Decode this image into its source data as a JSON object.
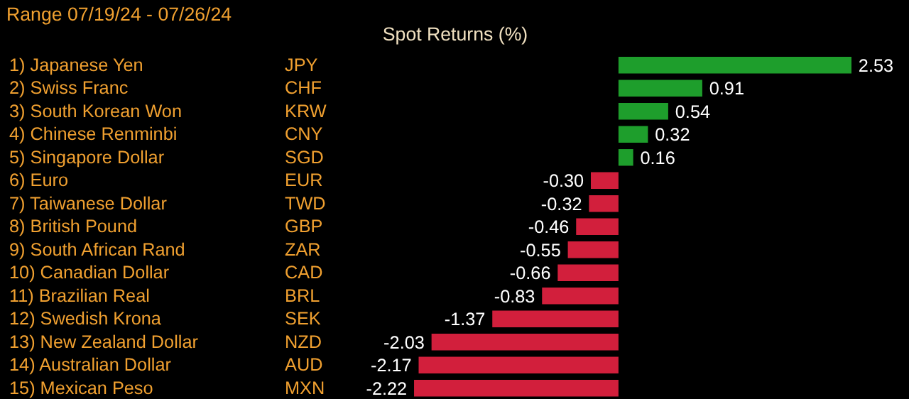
{
  "chart_data": {
    "type": "bar",
    "orientation": "horizontal",
    "title": "Spot Returns (%)",
    "subtitle": "Range 07/19/24 - 07/26/24",
    "categories": [
      "1) Japanese Yen",
      "2) Swiss Franc",
      "3) South Korean Won",
      "4) Chinese Renminbi",
      "5) Singapore Dollar",
      "6) Euro",
      "7) Taiwanese Dollar",
      "8) British Pound",
      "9) South African Rand",
      "10) Canadian Dollar",
      "11) Brazilian Real",
      "12) Swedish Krona",
      "13) New Zealand Dollar",
      "14) Australian Dollar",
      "15) Mexican Peso"
    ],
    "values": [
      2.53,
      0.91,
      0.54,
      0.32,
      0.16,
      -0.3,
      -0.32,
      -0.46,
      -0.55,
      -0.66,
      -0.83,
      -1.37,
      -2.03,
      -2.17,
      -2.22
    ],
    "value_labels": [
      "2.53",
      "0.91",
      "0.54",
      "0.32",
      "0.16",
      "-0.30",
      "-0.32",
      "-0.46",
      "-0.55",
      "-0.66",
      "-0.83",
      "-1.37",
      "-2.03",
      "-2.17",
      "-2.22"
    ],
    "colors": [
      "#1e9e2c",
      "#1e9e2c",
      "#1e9e2c",
      "#1e9e2c",
      "#1e9e2c",
      "#d21f3c",
      "#d21f3c",
      "#d21f3c",
      "#d21f3c",
      "#d21f3c",
      "#d21f3c",
      "#d21f3c",
      "#d21f3c",
      "#d21f3c",
      "#d21f3c"
    ],
    "annotations": [
      "JPY",
      "CHF",
      "KRW",
      "CNY",
      "SGD",
      "EUR",
      "TWD",
      "GBP",
      "ZAR",
      "CAD",
      "BRL",
      "SEK",
      "NZD",
      "AUD",
      "MXN"
    ]
  }
}
